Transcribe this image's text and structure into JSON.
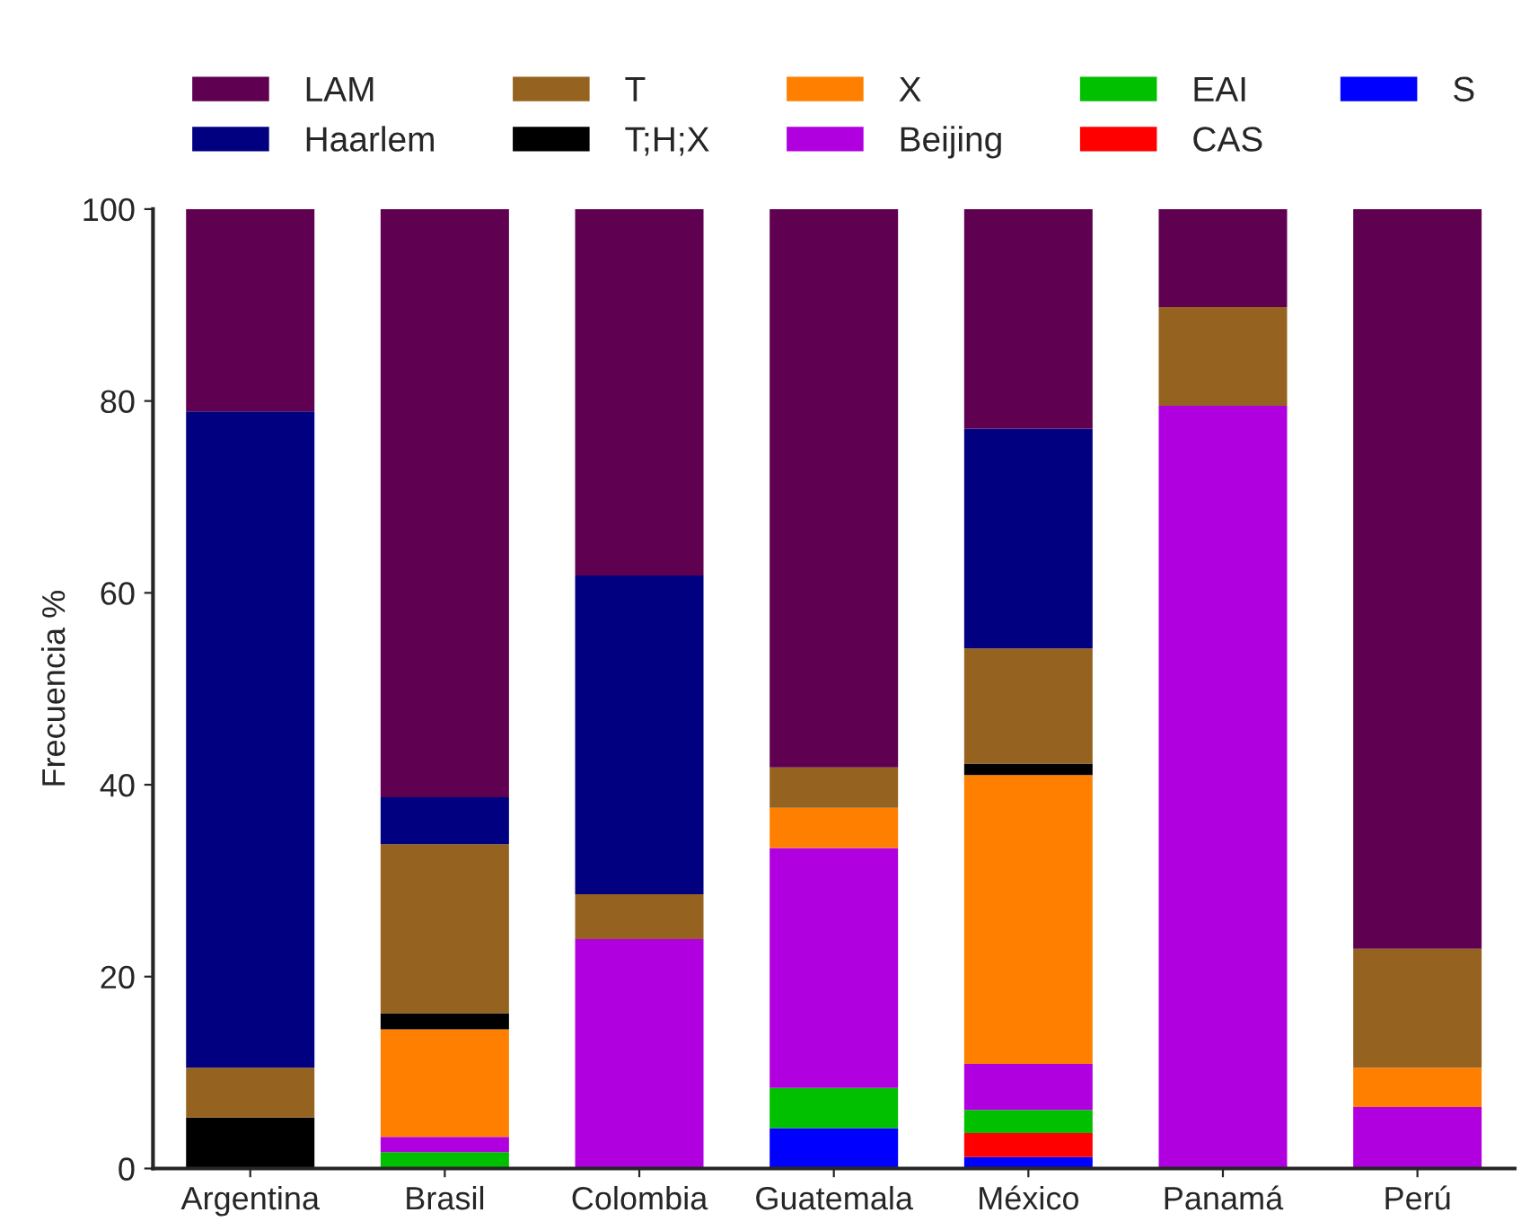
{
  "chart_data": {
    "type": "bar",
    "stacked": true,
    "ylabel": "Frecuencia %",
    "categories": [
      "Argentina",
      "Brasil",
      "Colombia",
      "Guatemala",
      "México",
      "Panamá",
      "Perú"
    ],
    "ylim": [
      0,
      100
    ],
    "yticks": [
      0,
      20,
      40,
      60,
      80,
      100
    ],
    "grid": false,
    "legend": "top",
    "series": [
      {
        "name": "S",
        "color": "#0000ff",
        "values": [
          0,
          0,
          0,
          4.2,
          1.2,
          0,
          0
        ]
      },
      {
        "name": "CAS",
        "color": "#ff0000",
        "values": [
          0,
          0,
          0,
          0,
          2.5,
          0,
          0
        ]
      },
      {
        "name": "EAI",
        "color": "#00c000",
        "values": [
          0,
          1.7,
          0,
          4.2,
          2.4,
          0,
          0
        ]
      },
      {
        "name": "Beijing",
        "color": "#b000e0",
        "values": [
          0,
          1.6,
          23.9,
          25.0,
          4.8,
          79.5,
          6.4
        ]
      },
      {
        "name": "X",
        "color": "#ff8000",
        "values": [
          0,
          11.2,
          0,
          4.2,
          30.1,
          0,
          4.1
        ]
      },
      {
        "name": "T;H;X",
        "color": "#000000",
        "values": [
          5.3,
          1.7,
          0,
          0,
          1.2,
          0,
          0
        ]
      },
      {
        "name": "T",
        "color": "#95631f",
        "values": [
          5.2,
          17.6,
          4.7,
          4.2,
          12.0,
          10.3,
          12.4
        ]
      },
      {
        "name": "Haarlem",
        "color": "#000080",
        "values": [
          68.4,
          4.9,
          33.2,
          0,
          22.9,
          0,
          0
        ]
      },
      {
        "name": "LAM",
        "color": "#600050",
        "values": [
          21.1,
          61.3,
          38.2,
          58.3,
          22.9,
          10.2,
          77.1
        ]
      }
    ]
  }
}
